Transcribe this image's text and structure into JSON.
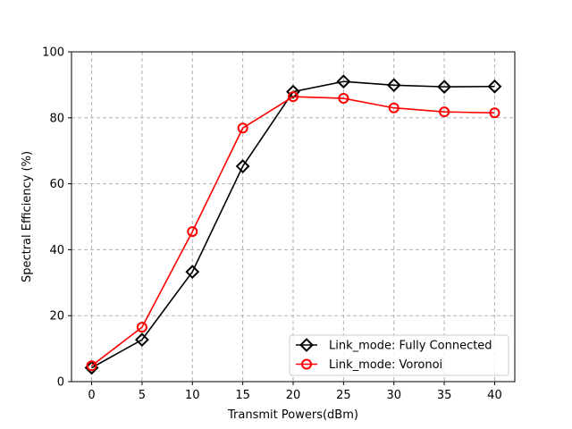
{
  "chart_data": {
    "type": "line",
    "title": "",
    "xlabel": "Transmit Powers(dBm)",
    "ylabel": "Spectral Efficiency (%)",
    "x": [
      0,
      5,
      10,
      15,
      20,
      25,
      30,
      35,
      40
    ],
    "xlim": [
      -2,
      42
    ],
    "ylim": [
      0,
      100
    ],
    "xticks": [
      0,
      5,
      10,
      15,
      20,
      25,
      30,
      35,
      40
    ],
    "yticks": [
      0,
      20,
      40,
      60,
      80,
      100
    ],
    "grid": true,
    "legend_position": "lower-right",
    "series": [
      {
        "name": "Link_mode: Fully Connected",
        "color": "#000000",
        "marker": "diamond",
        "values": [
          4.2,
          12.7,
          33.3,
          65.3,
          87.9,
          91.0,
          89.9,
          89.4,
          89.5
        ]
      },
      {
        "name": "Link_mode: Voronoi",
        "color": "#ff0000",
        "marker": "circle",
        "values": [
          4.8,
          16.5,
          45.5,
          76.9,
          86.4,
          85.9,
          83.0,
          81.8,
          81.5
        ]
      }
    ]
  }
}
